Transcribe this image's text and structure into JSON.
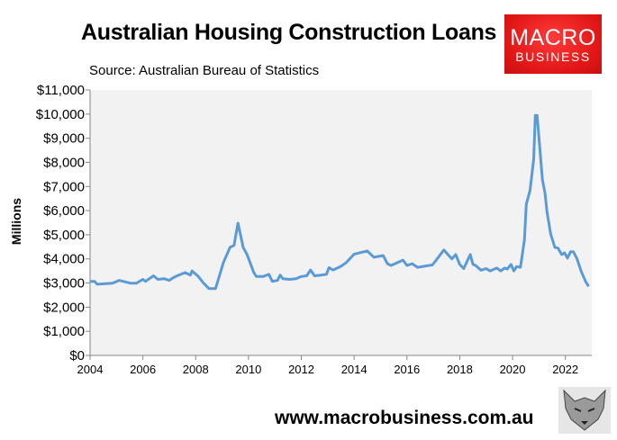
{
  "chart_data": {
    "type": "line",
    "title": "Australian Housing Construction Loans",
    "subtitle": "Source: Australian Bureau of Statistics",
    "xlabel": "",
    "ylabel": "Millions",
    "xlim": [
      2004,
      2023
    ],
    "ylim": [
      0,
      11000
    ],
    "x_ticks": [
      2004,
      2006,
      2008,
      2010,
      2012,
      2014,
      2016,
      2018,
      2020,
      2022
    ],
    "y_ticks": [
      0,
      1000,
      2000,
      3000,
      4000,
      5000,
      6000,
      7000,
      8000,
      9000,
      10000,
      11000
    ],
    "y_tick_labels": [
      "$0",
      "$1,000",
      "$2,000",
      "$3,000",
      "$4,000",
      "$5,000",
      "$6,000",
      "$7,000",
      "$8,000",
      "$9,000",
      "$10,000",
      "$11,000"
    ],
    "grid": false,
    "legend": "none",
    "colors": {
      "line": "#5b9bd5",
      "plot_background": "#f2f2f2"
    },
    "x": [
      2004.0,
      2004.17,
      2004.27,
      2004.85,
      2005.1,
      2005.25,
      2005.55,
      2005.75,
      2006.0,
      2006.1,
      2006.4,
      2006.57,
      2006.8,
      2007.0,
      2007.15,
      2007.3,
      2007.6,
      2007.8,
      2007.86,
      2008.1,
      2008.3,
      2008.5,
      2008.75,
      2008.9,
      2009.05,
      2009.3,
      2009.45,
      2009.6,
      2009.8,
      2009.95,
      2010.2,
      2010.3,
      2010.55,
      2010.77,
      2010.9,
      2011.1,
      2011.2,
      2011.3,
      2011.55,
      2011.8,
      2012.0,
      2012.2,
      2012.35,
      2012.5,
      2012.75,
      2012.95,
      2013.05,
      2013.2,
      2013.5,
      2013.7,
      2014.0,
      2014.5,
      2014.75,
      2015.1,
      2015.26,
      2015.4,
      2015.85,
      2016.0,
      2016.2,
      2016.4,
      2016.97,
      2017.4,
      2017.7,
      2017.85,
      2018.0,
      2018.15,
      2018.4,
      2018.5,
      2018.6,
      2018.8,
      2019.0,
      2019.15,
      2019.4,
      2019.55,
      2019.7,
      2019.8,
      2019.94,
      2020.05,
      2020.15,
      2020.3,
      2020.45,
      2020.52,
      2020.66,
      2020.8,
      2020.86,
      2020.93,
      2021.13,
      2021.23,
      2021.3,
      2021.44,
      2021.6,
      2021.72,
      2021.86,
      2021.97,
      2022.08,
      2022.2,
      2022.3,
      2022.43,
      2022.6,
      2022.77,
      2022.88
    ],
    "values": [
      3070,
      3070,
      2950,
      2990,
      3110,
      3070,
      2990,
      2990,
      3150,
      3070,
      3300,
      3150,
      3180,
      3110,
      3220,
      3300,
      3430,
      3330,
      3500,
      3270,
      2990,
      2770,
      2770,
      3300,
      3850,
      4480,
      4560,
      5480,
      4480,
      4170,
      3430,
      3270,
      3270,
      3360,
      3070,
      3110,
      3330,
      3180,
      3150,
      3180,
      3270,
      3300,
      3540,
      3300,
      3330,
      3360,
      3640,
      3540,
      3690,
      3850,
      4200,
      4330,
      4070,
      4140,
      3800,
      3730,
      3950,
      3730,
      3800,
      3650,
      3750,
      4370,
      4000,
      4180,
      3770,
      3600,
      4180,
      3770,
      3730,
      3530,
      3600,
      3500,
      3620,
      3500,
      3620,
      3580,
      3770,
      3500,
      3680,
      3650,
      4780,
      6270,
      6830,
      8130,
      9950,
      9950,
      7280,
      6720,
      5970,
      5040,
      4480,
      4450,
      4180,
      4250,
      4030,
      4300,
      4300,
      4030,
      3480,
      3050,
      2860
    ]
  },
  "logo": {
    "line1": "MACRO",
    "line2": "BUSINESS"
  },
  "footer": "www.macrobusiness.com.au"
}
